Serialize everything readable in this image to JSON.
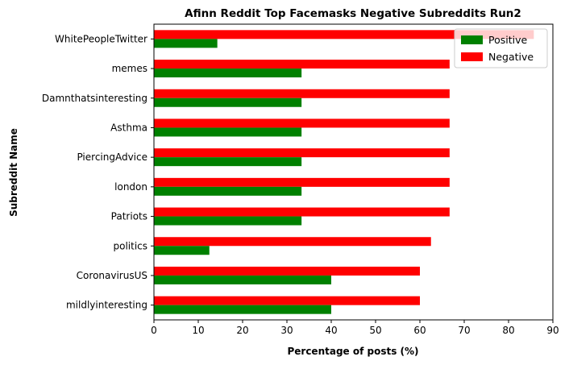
{
  "chart_data": {
    "type": "bar",
    "orientation": "horizontal",
    "title": "Afinn Reddit Top Facemasks Negative Subreddits Run2",
    "xlabel": "Percentage of posts (%)",
    "ylabel": "Subreddit Name",
    "xlim": [
      0,
      90
    ],
    "xticks": [
      "0",
      "10",
      "20",
      "30",
      "40",
      "50",
      "60",
      "70",
      "80",
      "90"
    ],
    "categories": [
      "WhitePeopleTwitter",
      "memes",
      "Damnthatsinteresting",
      "Asthma",
      "PiercingAdvice",
      "london",
      "Patriots",
      "politics",
      "CoronavirusUS",
      "mildlyinteresting"
    ],
    "series": [
      {
        "name": "Positive",
        "color": "#008000",
        "values": [
          14.3,
          33.3,
          33.3,
          33.3,
          33.3,
          33.3,
          33.3,
          12.5,
          40.0,
          40.0
        ]
      },
      {
        "name": "Negative",
        "color": "#ff0000",
        "values": [
          85.7,
          66.7,
          66.7,
          66.7,
          66.7,
          66.7,
          66.7,
          62.5,
          60.0,
          60.0
        ]
      }
    ],
    "legend_position": "top-right",
    "grid": false
  }
}
